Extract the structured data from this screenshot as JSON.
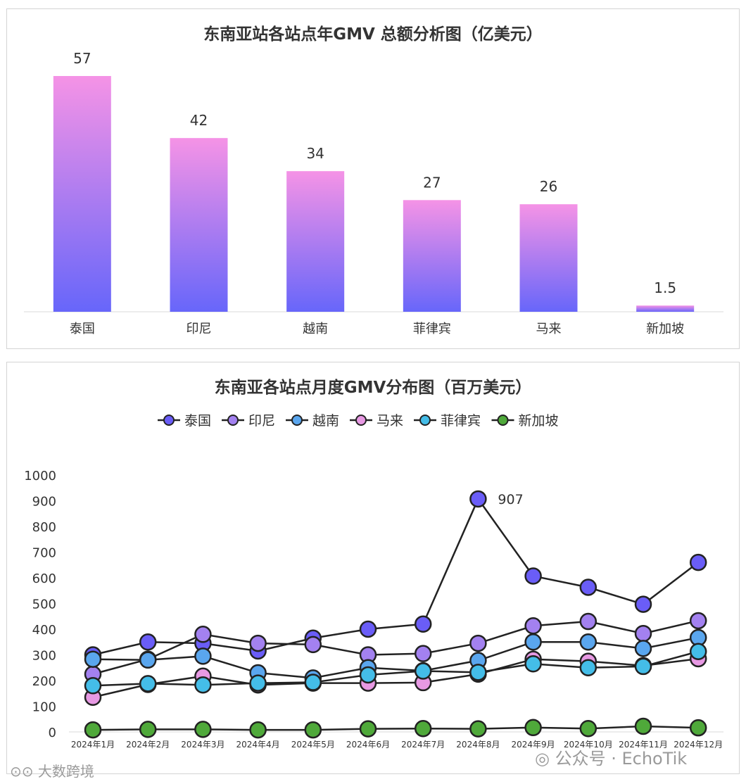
{
  "chart_data": [
    {
      "type": "bar",
      "title": "东南亚站各站点年GMV 总额分析图（亿美元）",
      "categories": [
        "泰国",
        "印尼",
        "越南",
        "菲律宾",
        "马来",
        "新加坡"
      ],
      "values": [
        57,
        42,
        34,
        27,
        26,
        1.5
      ],
      "data_labels": [
        "57",
        "42",
        "34",
        "27",
        "26",
        "1.5"
      ],
      "ylim": [
        0,
        60
      ],
      "grid": false,
      "colors": {
        "bar_top": "#f593e6",
        "bar_bottom": "#6766fa"
      }
    },
    {
      "type": "line",
      "title": "东南亚各站点月度GMV分布图（百万美元）",
      "categories": [
        "2024年1月",
        "2024年2月",
        "2024年3月",
        "2024年4月",
        "2024年5月",
        "2024年6月",
        "2024年7月",
        "2024年8月",
        "2024年9月",
        "2024年10月",
        "2024年11月",
        "2024年12月"
      ],
      "ylim": [
        0,
        1000
      ],
      "yticks": [
        "0",
        "100",
        "200",
        "300",
        "400",
        "500",
        "600",
        "700",
        "800",
        "900",
        "1000"
      ],
      "legend_position": "top",
      "grid": false,
      "annotation": {
        "series": "泰国",
        "index": 7,
        "text": "907"
      },
      "series": [
        {
          "name": "泰国",
          "color": "#6a5df7",
          "values": [
            300,
            350,
            345,
            315,
            365,
            400,
            420,
            907,
            607,
            563,
            497,
            660
          ]
        },
        {
          "name": "印尼",
          "color": "#a381f0",
          "values": [
            225,
            283,
            380,
            345,
            340,
            300,
            305,
            345,
            413,
            430,
            383,
            433
          ]
        },
        {
          "name": "越南",
          "color": "#5aa6ee",
          "values": [
            283,
            280,
            295,
            230,
            210,
            250,
            238,
            278,
            350,
            350,
            325,
            367
          ]
        },
        {
          "name": "马来",
          "color": "#e799e3",
          "values": [
            135,
            185,
            217,
            183,
            190,
            190,
            192,
            225,
            283,
            275,
            258,
            285
          ]
        },
        {
          "name": "菲律宾",
          "color": "#44bde8",
          "values": [
            180,
            188,
            183,
            190,
            193,
            222,
            237,
            232,
            265,
            250,
            255,
            313
          ]
        },
        {
          "name": "新加坡",
          "color": "#4fa93a",
          "values": [
            8,
            10,
            10,
            8,
            8,
            12,
            13,
            12,
            17,
            13,
            22,
            16
          ]
        }
      ]
    }
  ],
  "watermarks": {
    "left": "大数跨境",
    "right": "公众号 · EchoTik"
  }
}
